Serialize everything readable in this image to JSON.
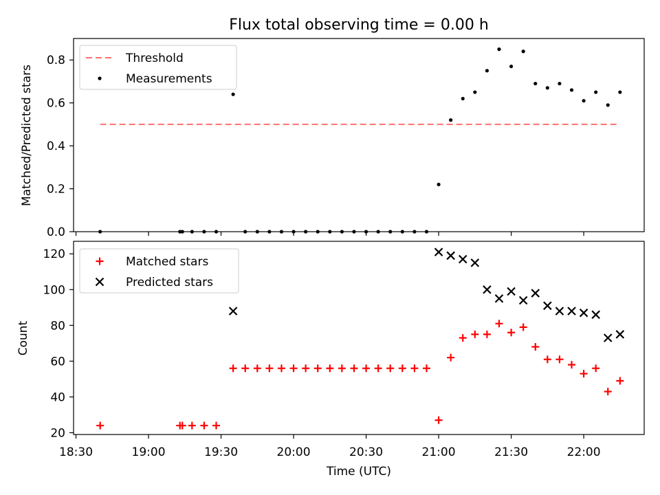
{
  "title": "Flux total observing time = 0.00 h",
  "colors": {
    "threshold": "#ff7070",
    "measurement": "#000000",
    "matched": "#ff0000",
    "predicted": "#000000"
  },
  "chart_data": [
    {
      "type": "scatter",
      "ylabel": "Matched/Predicted stars",
      "ylim": [
        0,
        0.9
      ],
      "yticks": [
        "0.0",
        "0.2",
        "0.4",
        "0.6",
        "0.8"
      ],
      "grid": false,
      "legend_position": "top-left",
      "threshold": {
        "name": "Threshold",
        "value": 0.5,
        "x_start": "18:40",
        "x_end": "22:15"
      },
      "series": [
        {
          "name": "Measurements",
          "points": [
            [
              "18:40",
              0.0
            ],
            [
              "19:13",
              0.0
            ],
            [
              "19:14",
              0.0
            ],
            [
              "19:18",
              0.0
            ],
            [
              "19:23",
              0.0
            ],
            [
              "19:28",
              0.0
            ],
            [
              "19:35",
              0.64
            ],
            [
              "19:40",
              0.0
            ],
            [
              "19:45",
              0.0
            ],
            [
              "19:50",
              0.0
            ],
            [
              "19:55",
              0.0
            ],
            [
              "20:00",
              0.0
            ],
            [
              "20:05",
              0.0
            ],
            [
              "20:10",
              0.0
            ],
            [
              "20:15",
              0.0
            ],
            [
              "20:20",
              0.0
            ],
            [
              "20:25",
              0.0
            ],
            [
              "20:30",
              0.0
            ],
            [
              "20:35",
              0.0
            ],
            [
              "20:40",
              0.0
            ],
            [
              "20:45",
              0.0
            ],
            [
              "20:50",
              0.0
            ],
            [
              "20:55",
              0.0
            ],
            [
              "21:00",
              0.22
            ],
            [
              "21:05",
              0.52
            ],
            [
              "21:10",
              0.62
            ],
            [
              "21:15",
              0.65
            ],
            [
              "21:20",
              0.75
            ],
            [
              "21:25",
              0.85
            ],
            [
              "21:30",
              0.77
            ],
            [
              "21:35",
              0.84
            ],
            [
              "21:40",
              0.69
            ],
            [
              "21:45",
              0.67
            ],
            [
              "21:50",
              0.69
            ],
            [
              "21:55",
              0.66
            ],
            [
              "22:00",
              0.61
            ],
            [
              "22:05",
              0.65
            ],
            [
              "22:10",
              0.59
            ],
            [
              "22:15",
              0.65
            ]
          ]
        }
      ]
    },
    {
      "type": "scatter",
      "xlabel": "Time (UTC)",
      "ylabel": "Count",
      "ylim": [
        19,
        127
      ],
      "yticks": [
        "20",
        "40",
        "60",
        "80",
        "100",
        "120"
      ],
      "xlim": [
        "18:29",
        "22:25"
      ],
      "xticks": [
        "18:30",
        "19:00",
        "19:30",
        "20:00",
        "20:30",
        "21:00",
        "21:30",
        "22:00"
      ],
      "grid": false,
      "legend_position": "top-left",
      "series": [
        {
          "name": "Matched stars",
          "points": [
            [
              "18:40",
              24
            ],
            [
              "19:13",
              24
            ],
            [
              "19:14",
              24
            ],
            [
              "19:18",
              24
            ],
            [
              "19:23",
              24
            ],
            [
              "19:28",
              24
            ],
            [
              "19:35",
              56
            ],
            [
              "19:40",
              56
            ],
            [
              "19:45",
              56
            ],
            [
              "19:50",
              56
            ],
            [
              "19:55",
              56
            ],
            [
              "20:00",
              56
            ],
            [
              "20:05",
              56
            ],
            [
              "20:10",
              56
            ],
            [
              "20:15",
              56
            ],
            [
              "20:20",
              56
            ],
            [
              "20:25",
              56
            ],
            [
              "20:30",
              56
            ],
            [
              "20:35",
              56
            ],
            [
              "20:40",
              56
            ],
            [
              "20:45",
              56
            ],
            [
              "20:50",
              56
            ],
            [
              "20:55",
              56
            ],
            [
              "21:00",
              27
            ],
            [
              "21:05",
              62
            ],
            [
              "21:10",
              73
            ],
            [
              "21:15",
              75
            ],
            [
              "21:20",
              75
            ],
            [
              "21:25",
              81
            ],
            [
              "21:30",
              76
            ],
            [
              "21:35",
              79
            ],
            [
              "21:40",
              68
            ],
            [
              "21:45",
              61
            ],
            [
              "21:50",
              61
            ],
            [
              "21:55",
              58
            ],
            [
              "22:00",
              53
            ],
            [
              "22:05",
              56
            ],
            [
              "22:10",
              43
            ],
            [
              "22:15",
              49
            ]
          ]
        },
        {
          "name": "Predicted stars",
          "points": [
            [
              "19:35",
              88
            ],
            [
              "21:00",
              121
            ],
            [
              "21:05",
              119
            ],
            [
              "21:10",
              117
            ],
            [
              "21:15",
              115
            ],
            [
              "21:20",
              100
            ],
            [
              "21:25",
              95
            ],
            [
              "21:30",
              99
            ],
            [
              "21:35",
              94
            ],
            [
              "21:40",
              98
            ],
            [
              "21:45",
              91
            ],
            [
              "21:50",
              88
            ],
            [
              "21:55",
              88
            ],
            [
              "22:00",
              87
            ],
            [
              "22:05",
              86
            ],
            [
              "22:10",
              73
            ],
            [
              "22:15",
              75
            ]
          ]
        }
      ]
    }
  ]
}
